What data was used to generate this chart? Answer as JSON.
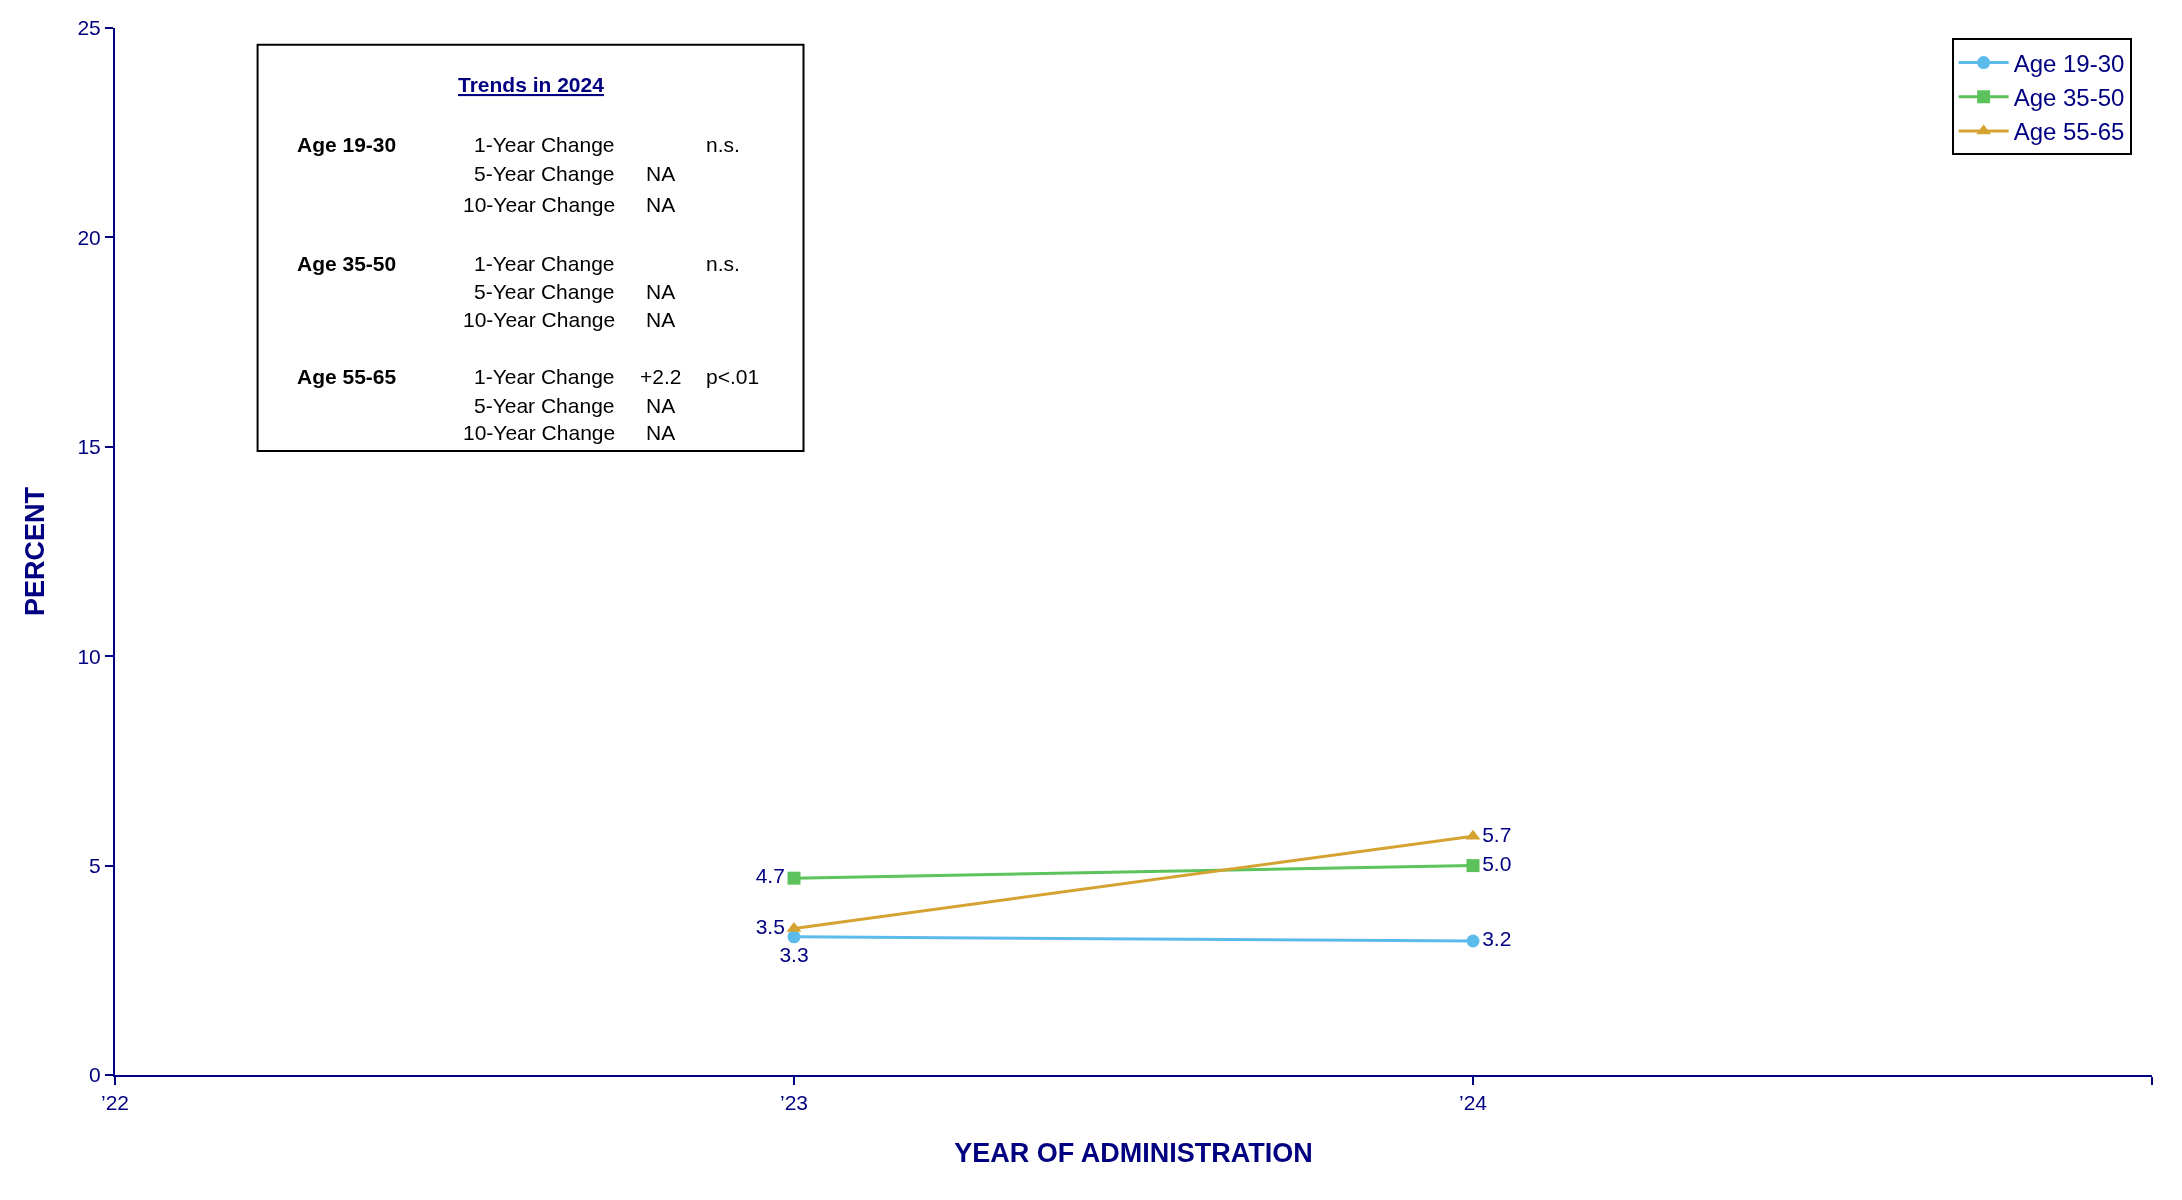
{
  "chart_data": {
    "type": "line",
    "xlabel": "YEAR OF ADMINISTRATION",
    "ylabel": "PERCENT",
    "x": [
      2023,
      2024
    ],
    "xlim": [
      2022,
      2025
    ],
    "xticks": [
      {
        "value": 2022,
        "label": "’22"
      },
      {
        "value": 2023,
        "label": "’23"
      },
      {
        "value": 2024,
        "label": "’24"
      },
      {
        "value": 2025,
        "label": null
      }
    ],
    "ylim": [
      0,
      25
    ],
    "yticks": [
      0,
      5,
      10,
      15,
      20,
      25
    ],
    "series": [
      {
        "name": "Age 19-30",
        "color": "#5bbcec",
        "marker": "circle",
        "values": [
          3.3,
          3.2
        ],
        "value_labels": [
          "3.3",
          "3.2"
        ]
      },
      {
        "name": "Age 35-50",
        "color": "#5cc35c",
        "marker": "square",
        "values": [
          4.7,
          5.0
        ],
        "value_labels": [
          "4.7",
          "5.0"
        ]
      },
      {
        "name": "Age 55-65",
        "color": "#d4a332",
        "marker": "triangle",
        "values": [
          3.5,
          5.7
        ],
        "value_labels": [
          "3.5",
          "5.7"
        ]
      }
    ],
    "legend": "top right",
    "line_style": "solid",
    "annotations": [
      "Trends in 2024",
      "Age 19-30\t1-Year Change\t\tn.s.",
      "\t5-Year Change\tNA\t",
      "\t10-Year Change\tNA\t",
      "Age 35-50\t1-Year Change\t\tn.s.",
      "\t5-Year Change\tNA\t",
      "\t10-Year Change\tNA\t",
      "Age 55-65\t1-Year Change\t+2.2\tp<.01",
      "\t5-Year Change\tNA\t",
      "\t10-Year Change\tNA\t"
    ]
  }
}
